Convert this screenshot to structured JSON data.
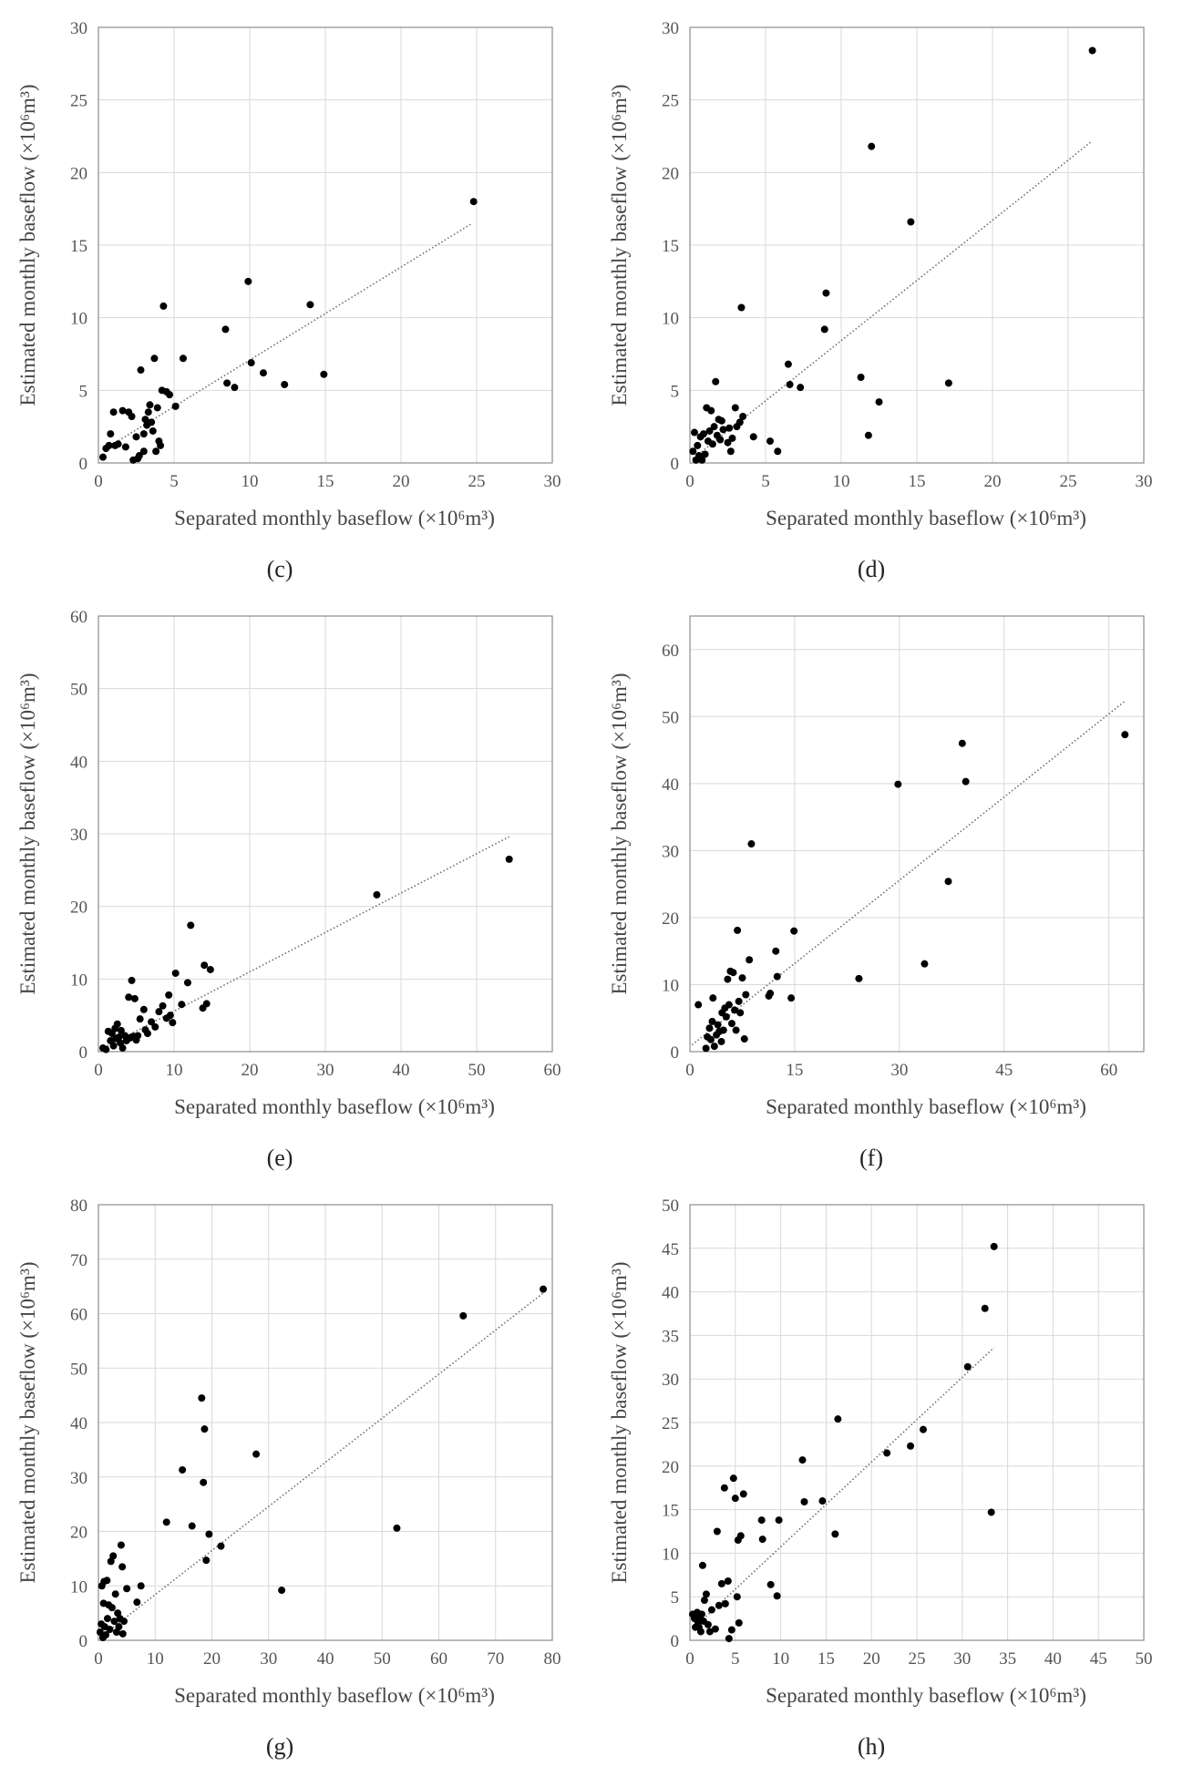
{
  "chart_data": [
    {
      "type": "scatter",
      "panel_label": "(c)",
      "xlabel": "Separated monthly baseflow (×10⁶m³)",
      "ylabel": "Estimated monthly baseflow (×10⁶m³)",
      "xlim": [
        0,
        30
      ],
      "ylim": [
        0,
        30
      ],
      "xticks": [
        0,
        5,
        10,
        15,
        20,
        25,
        30
      ],
      "yticks": [
        0,
        5,
        10,
        15,
        20,
        25,
        30
      ],
      "trendline": [
        [
          0.5,
          1.0
        ],
        [
          24.7,
          16.5
        ]
      ],
      "points": [
        [
          0.3,
          0.4
        ],
        [
          0.5,
          1.0
        ],
        [
          0.7,
          1.2
        ],
        [
          0.8,
          2.0
        ],
        [
          1.0,
          3.5
        ],
        [
          1.1,
          1.2
        ],
        [
          1.3,
          1.3
        ],
        [
          1.6,
          3.6
        ],
        [
          1.8,
          1.1
        ],
        [
          2.0,
          3.5
        ],
        [
          2.2,
          3.2
        ],
        [
          2.3,
          0.2
        ],
        [
          2.5,
          1.8
        ],
        [
          2.6,
          0.3
        ],
        [
          2.7,
          0.5
        ],
        [
          2.8,
          6.4
        ],
        [
          3.0,
          0.8
        ],
        [
          3.0,
          2.0
        ],
        [
          3.1,
          3.0
        ],
        [
          3.2,
          2.6
        ],
        [
          3.3,
          3.5
        ],
        [
          3.4,
          4.0
        ],
        [
          3.5,
          2.8
        ],
        [
          3.6,
          2.2
        ],
        [
          3.7,
          7.2
        ],
        [
          3.8,
          0.8
        ],
        [
          3.9,
          3.8
        ],
        [
          4.0,
          1.5
        ],
        [
          4.1,
          1.2
        ],
        [
          4.2,
          5.0
        ],
        [
          4.3,
          10.8
        ],
        [
          4.5,
          4.9
        ],
        [
          4.7,
          4.7
        ],
        [
          5.1,
          3.9
        ],
        [
          5.6,
          7.2
        ],
        [
          8.4,
          9.2
        ],
        [
          8.5,
          5.5
        ],
        [
          9.0,
          5.2
        ],
        [
          9.9,
          12.5
        ],
        [
          10.1,
          6.9
        ],
        [
          10.9,
          6.2
        ],
        [
          12.3,
          5.4
        ],
        [
          14.0,
          10.9
        ],
        [
          14.9,
          6.1
        ],
        [
          24.8,
          18.0
        ]
      ]
    },
    {
      "type": "scatter",
      "panel_label": "(d)",
      "xlabel": "Separated monthly baseflow (×10⁶m³)",
      "ylabel": "Estimated monthly baseflow (×10⁶m³)",
      "xlim": [
        0,
        30
      ],
      "ylim": [
        0,
        30
      ],
      "xticks": [
        0,
        5,
        10,
        15,
        20,
        25,
        30
      ],
      "yticks": [
        0,
        5,
        10,
        15,
        20,
        25,
        30
      ],
      "trendline": [
        [
          0.2,
          0.3
        ],
        [
          26.5,
          22.1
        ]
      ],
      "points": [
        [
          0.2,
          0.8
        ],
        [
          0.3,
          2.1
        ],
        [
          0.4,
          0.2
        ],
        [
          0.5,
          1.2
        ],
        [
          0.6,
          0.5
        ],
        [
          0.7,
          1.8
        ],
        [
          0.8,
          0.2
        ],
        [
          0.9,
          2.0
        ],
        [
          1.0,
          0.6
        ],
        [
          1.1,
          3.8
        ],
        [
          1.2,
          1.5
        ],
        [
          1.3,
          2.2
        ],
        [
          1.4,
          3.6
        ],
        [
          1.5,
          1.3
        ],
        [
          1.6,
          2.5
        ],
        [
          1.7,
          5.6
        ],
        [
          1.8,
          1.9
        ],
        [
          1.9,
          3.0
        ],
        [
          2.0,
          1.6
        ],
        [
          2.1,
          2.9
        ],
        [
          2.2,
          2.3
        ],
        [
          2.5,
          1.4
        ],
        [
          2.6,
          2.4
        ],
        [
          2.7,
          0.8
        ],
        [
          2.8,
          1.7
        ],
        [
          3.0,
          3.8
        ],
        [
          3.1,
          2.5
        ],
        [
          3.3,
          2.8
        ],
        [
          3.4,
          10.7
        ],
        [
          3.5,
          3.2
        ],
        [
          4.2,
          1.8
        ],
        [
          5.3,
          1.5
        ],
        [
          5.8,
          0.8
        ],
        [
          6.5,
          6.8
        ],
        [
          6.6,
          5.4
        ],
        [
          7.3,
          5.2
        ],
        [
          8.9,
          9.2
        ],
        [
          9.0,
          11.7
        ],
        [
          11.3,
          5.9
        ],
        [
          11.8,
          1.9
        ],
        [
          12.0,
          21.8
        ],
        [
          12.5,
          4.2
        ],
        [
          14.6,
          16.6
        ],
        [
          17.1,
          5.5
        ],
        [
          26.6,
          28.4
        ]
      ]
    },
    {
      "type": "scatter",
      "panel_label": "(e)",
      "xlabel": "Separated monthly baseflow (×10⁶m³)",
      "ylabel": "Estimated monthly baseflow (×10⁶m³)",
      "xlim": [
        0,
        60
      ],
      "ylim": [
        0,
        60
      ],
      "xticks": [
        0,
        10,
        20,
        30,
        40,
        50,
        60
      ],
      "yticks": [
        0,
        10,
        20,
        30,
        40,
        50,
        60
      ],
      "trendline": [
        [
          0.3,
          0.3
        ],
        [
          54.3,
          29.6
        ]
      ],
      "points": [
        [
          0.6,
          0.5
        ],
        [
          1.0,
          0.3
        ],
        [
          1.3,
          2.8
        ],
        [
          1.6,
          1.5
        ],
        [
          1.8,
          2.5
        ],
        [
          2.0,
          0.8
        ],
        [
          2.2,
          3.2
        ],
        [
          2.3,
          1.8
        ],
        [
          2.5,
          3.8
        ],
        [
          2.7,
          2.0
        ],
        [
          2.9,
          1.2
        ],
        [
          3.0,
          2.9
        ],
        [
          3.2,
          0.5
        ],
        [
          3.5,
          2.2
        ],
        [
          3.7,
          1.5
        ],
        [
          4.0,
          7.5
        ],
        [
          4.2,
          1.9
        ],
        [
          4.4,
          9.8
        ],
        [
          4.6,
          2.1
        ],
        [
          4.8,
          7.3
        ],
        [
          5.0,
          1.6
        ],
        [
          5.2,
          2.2
        ],
        [
          5.5,
          4.5
        ],
        [
          6.0,
          5.8
        ],
        [
          6.2,
          3.0
        ],
        [
          6.5,
          2.5
        ],
        [
          7.0,
          4.1
        ],
        [
          7.5,
          3.4
        ],
        [
          8.0,
          5.5
        ],
        [
          8.5,
          6.3
        ],
        [
          9.0,
          4.6
        ],
        [
          9.3,
          7.8
        ],
        [
          9.5,
          5.0
        ],
        [
          9.8,
          4.0
        ],
        [
          10.2,
          10.8
        ],
        [
          11.0,
          6.5
        ],
        [
          11.8,
          9.5
        ],
        [
          12.2,
          17.4
        ],
        [
          13.8,
          6.0
        ],
        [
          14.0,
          11.9
        ],
        [
          14.3,
          6.6
        ],
        [
          14.8,
          11.3
        ],
        [
          36.8,
          21.6
        ],
        [
          54.3,
          26.5
        ]
      ]
    },
    {
      "type": "scatter",
      "panel_label": "(f)",
      "xlabel": "Separated monthly baseflow (×10⁶m³)",
      "ylabel": "Estimated monthly baseflow (×10⁶m³)",
      "xlim": [
        0,
        65
      ],
      "ylim": [
        0,
        65
      ],
      "xticks": [
        0,
        15,
        30,
        45,
        60
      ],
      "yticks": [
        0,
        10,
        20,
        30,
        40,
        50,
        60
      ],
      "trendline": [
        [
          0.3,
          1.0
        ],
        [
          62.3,
          52.3
        ]
      ],
      "points": [
        [
          1.2,
          7.0
        ],
        [
          2.3,
          0.5
        ],
        [
          2.5,
          2.2
        ],
        [
          2.8,
          3.5
        ],
        [
          3.0,
          1.8
        ],
        [
          3.2,
          4.5
        ],
        [
          3.3,
          8.0
        ],
        [
          3.5,
          0.8
        ],
        [
          3.8,
          2.5
        ],
        [
          4.0,
          4.0
        ],
        [
          4.2,
          3.0
        ],
        [
          4.5,
          1.5
        ],
        [
          4.6,
          5.8
        ],
        [
          4.8,
          3.2
        ],
        [
          5.0,
          6.5
        ],
        [
          5.2,
          5.2
        ],
        [
          5.4,
          10.8
        ],
        [
          5.6,
          7.0
        ],
        [
          5.8,
          12.0
        ],
        [
          6.0,
          4.2
        ],
        [
          6.2,
          11.8
        ],
        [
          6.4,
          6.2
        ],
        [
          6.6,
          3.2
        ],
        [
          6.8,
          18.1
        ],
        [
          7.0,
          7.5
        ],
        [
          7.2,
          5.8
        ],
        [
          7.5,
          11.0
        ],
        [
          7.8,
          1.9
        ],
        [
          8.0,
          8.5
        ],
        [
          8.5,
          13.7
        ],
        [
          8.8,
          31.0
        ],
        [
          11.3,
          8.3
        ],
        [
          11.5,
          8.7
        ],
        [
          12.3,
          15.0
        ],
        [
          12.5,
          11.2
        ],
        [
          14.5,
          8.0
        ],
        [
          14.9,
          18.0
        ],
        [
          24.2,
          10.9
        ],
        [
          29.8,
          39.9
        ],
        [
          33.6,
          13.1
        ],
        [
          37.0,
          25.4
        ],
        [
          39.0,
          46.0
        ],
        [
          39.5,
          40.3
        ],
        [
          62.3,
          47.3
        ]
      ]
    },
    {
      "type": "scatter",
      "panel_label": "(g)",
      "xlabel": "Separated monthly baseflow (×10⁶m³)",
      "ylabel": "Estimated monthly baseflow (×10⁶m³)",
      "xlim": [
        0,
        80
      ],
      "ylim": [
        0,
        80
      ],
      "xticks": [
        0,
        10,
        20,
        30,
        40,
        50,
        60,
        70,
        80
      ],
      "yticks": [
        0,
        10,
        20,
        30,
        40,
        50,
        60,
        70,
        80
      ],
      "trendline": [
        [
          0.5,
          0.7
        ],
        [
          78.3,
          63.7
        ]
      ],
      "points": [
        [
          0.3,
          1.5
        ],
        [
          0.5,
          3.0
        ],
        [
          0.6,
          10.0
        ],
        [
          0.8,
          0.5
        ],
        [
          0.9,
          6.8
        ],
        [
          1.0,
          10.8
        ],
        [
          1.1,
          2.5
        ],
        [
          1.3,
          1.0
        ],
        [
          1.5,
          11.0
        ],
        [
          1.6,
          4.0
        ],
        [
          1.8,
          6.5
        ],
        [
          2.0,
          2.0
        ],
        [
          2.2,
          14.5
        ],
        [
          2.4,
          6.0
        ],
        [
          2.6,
          15.5
        ],
        [
          2.8,
          3.5
        ],
        [
          3.0,
          8.5
        ],
        [
          3.2,
          1.5
        ],
        [
          3.4,
          5.0
        ],
        [
          3.6,
          2.5
        ],
        [
          3.8,
          4.0
        ],
        [
          4.0,
          17.5
        ],
        [
          4.2,
          13.5
        ],
        [
          4.3,
          1.2
        ],
        [
          4.5,
          3.5
        ],
        [
          5.0,
          9.5
        ],
        [
          6.8,
          7.0
        ],
        [
          7.5,
          10.0
        ],
        [
          12.0,
          21.7
        ],
        [
          14.8,
          31.3
        ],
        [
          16.5,
          21.0
        ],
        [
          18.2,
          44.5
        ],
        [
          18.5,
          29.0
        ],
        [
          18.7,
          38.8
        ],
        [
          19.0,
          14.7
        ],
        [
          19.5,
          19.5
        ],
        [
          21.6,
          17.3
        ],
        [
          27.8,
          34.2
        ],
        [
          32.3,
          9.2
        ],
        [
          52.6,
          20.6
        ],
        [
          64.3,
          59.6
        ],
        [
          78.4,
          64.5
        ]
      ]
    },
    {
      "type": "scatter",
      "panel_label": "(h)",
      "xlabel": "Separated monthly baseflow (×10⁶m³)",
      "ylabel": "Estimated monthly baseflow (×10⁶m³)",
      "xlim": [
        0,
        50
      ],
      "ylim": [
        0,
        50
      ],
      "xticks": [
        0,
        5,
        10,
        15,
        20,
        25,
        30,
        35,
        40,
        45,
        50
      ],
      "yticks": [
        0,
        5,
        10,
        15,
        20,
        25,
        30,
        35,
        40,
        45,
        50
      ],
      "trendline": [
        [
          0.3,
          1.3
        ],
        [
          33.5,
          33.6
        ]
      ],
      "points": [
        [
          0.3,
          3.0
        ],
        [
          0.5,
          2.5
        ],
        [
          0.6,
          1.5
        ],
        [
          0.8,
          3.2
        ],
        [
          0.9,
          2.0
        ],
        [
          1.0,
          1.5
        ],
        [
          1.1,
          2.7
        ],
        [
          1.2,
          1.0
        ],
        [
          1.3,
          3.0
        ],
        [
          1.4,
          8.6
        ],
        [
          1.5,
          2.2
        ],
        [
          1.6,
          4.6
        ],
        [
          1.8,
          5.3
        ],
        [
          2.0,
          1.8
        ],
        [
          2.2,
          1.0
        ],
        [
          2.4,
          3.5
        ],
        [
          2.8,
          1.3
        ],
        [
          3.0,
          12.5
        ],
        [
          3.2,
          4.0
        ],
        [
          3.5,
          6.5
        ],
        [
          3.8,
          17.5
        ],
        [
          3.9,
          4.2
        ],
        [
          4.2,
          6.8
        ],
        [
          4.3,
          0.2
        ],
        [
          4.6,
          1.2
        ],
        [
          4.8,
          18.6
        ],
        [
          5.0,
          16.3
        ],
        [
          5.2,
          5.0
        ],
        [
          5.3,
          11.5
        ],
        [
          5.4,
          2.0
        ],
        [
          5.6,
          12.0
        ],
        [
          5.9,
          16.8
        ],
        [
          7.9,
          13.8
        ],
        [
          8.0,
          11.6
        ],
        [
          8.9,
          6.4
        ],
        [
          9.6,
          5.1
        ],
        [
          9.8,
          13.8
        ],
        [
          12.4,
          20.7
        ],
        [
          12.6,
          15.9
        ],
        [
          14.6,
          16.0
        ],
        [
          16.0,
          12.2
        ],
        [
          16.3,
          25.4
        ],
        [
          21.7,
          21.5
        ],
        [
          24.3,
          22.3
        ],
        [
          25.7,
          24.2
        ],
        [
          30.6,
          31.4
        ],
        [
          32.5,
          38.1
        ],
        [
          33.2,
          14.7
        ],
        [
          33.5,
          45.2
        ]
      ]
    }
  ]
}
